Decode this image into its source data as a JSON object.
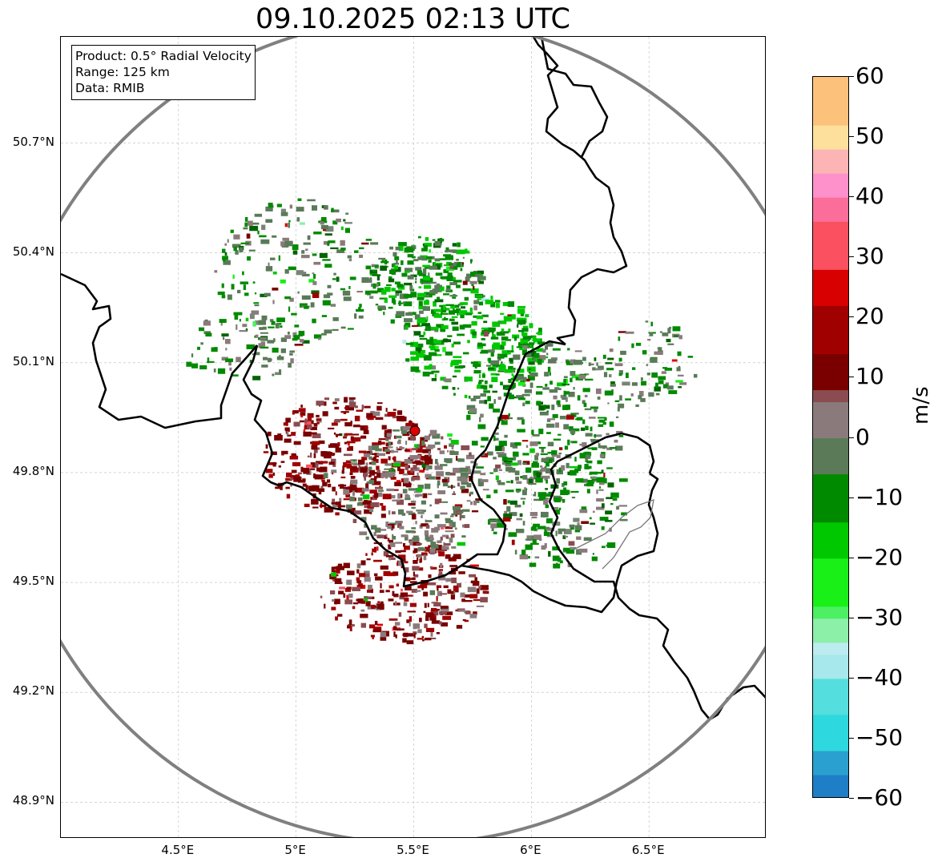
{
  "title": "09.10.2025 02:13 UTC",
  "info": {
    "product": "Product: 0.5° Radial Velocity",
    "range": "Range: 125 km",
    "source": "Data: RMIB"
  },
  "lat_ticks": [
    "50.7°N",
    "50.4°N",
    "50.1°N",
    "49.8°N",
    "49.5°N",
    "49.2°N",
    "48.9°N"
  ],
  "lon_ticks": [
    "4.5°E",
    "5°E",
    "5.5°E",
    "6°E",
    "6.5°E"
  ],
  "lon_values": [
    4.5,
    5.0,
    5.5,
    6.0,
    6.5
  ],
  "lat_values": [
    50.7,
    50.4,
    50.1,
    49.8,
    49.5,
    49.2,
    48.9
  ],
  "extent": {
    "lon_min": 4.0,
    "lon_max": 7.0,
    "lat_min": 48.8,
    "lat_max": 50.99
  },
  "radar_site": {
    "lon": 5.505,
    "lat": 49.914,
    "color": "#e00000"
  },
  "range_ring_km": 125,
  "colorbar": {
    "label": "m/s",
    "min": -60,
    "max": 60,
    "ticks": [
      "60",
      "50",
      "40",
      "30",
      "20",
      "10",
      "0",
      "−10",
      "−20",
      "−30",
      "−40",
      "−50",
      "−60"
    ],
    "tick_values": [
      60,
      50,
      40,
      30,
      20,
      10,
      0,
      -10,
      -20,
      -30,
      -40,
      -50,
      -60
    ]
  },
  "palette": {
    "stops": [
      {
        "v": -60,
        "c": "#1f7fc6"
      },
      {
        "v": -56,
        "c": "#2aa0d0"
      },
      {
        "v": -52,
        "c": "#2dd8de"
      },
      {
        "v": -46,
        "c": "#55dede"
      },
      {
        "v": -40,
        "c": "#a6e8ec"
      },
      {
        "v": -35,
        "c": "#bcecf0"
      },
      {
        "v": -33,
        "c": "#8cf0a8"
      },
      {
        "v": -30,
        "c": "#4cf062"
      },
      {
        "v": -27,
        "c": "#18f018"
      },
      {
        "v": -20,
        "c": "#00c800"
      },
      {
        "v": -13,
        "c": "#008a00"
      },
      {
        "v": -6,
        "c": "#006400"
      },
      {
        "v": -5,
        "c": "#5a7a58"
      },
      {
        "v": 0,
        "c": "#7a8476"
      },
      {
        "v": 1,
        "c": "#8a7a7c"
      },
      {
        "v": 6,
        "c": "#8a4c50"
      },
      {
        "v": 8,
        "c": "#7a0000"
      },
      {
        "v": 15,
        "c": "#a00000"
      },
      {
        "v": 22,
        "c": "#d80000"
      },
      {
        "v": 28,
        "c": "#f80000"
      },
      {
        "v": 29,
        "c": "#fa5060"
      },
      {
        "v": 36,
        "c": "#fc6e9a"
      },
      {
        "v": 40,
        "c": "#fe90cc"
      },
      {
        "v": 45,
        "c": "#fcb4b4"
      },
      {
        "v": 48,
        "c": "#fce09c"
      },
      {
        "v": 53,
        "c": "#fcc27c"
      },
      {
        "v": 60,
        "c": "#fc9454"
      }
    ]
  },
  "echo_regions": [
    {
      "lon": 5.55,
      "lat": 50.32,
      "rx": 0.25,
      "ry": 0.13,
      "v": -8,
      "n": 260
    },
    {
      "lon": 5.75,
      "lat": 50.15,
      "rx": 0.3,
      "ry": 0.14,
      "v": -12,
      "n": 260
    },
    {
      "lon": 6.05,
      "lat": 49.95,
      "rx": 0.33,
      "ry": 0.22,
      "v": -5,
      "n": 320
    },
    {
      "lon": 6.1,
      "lat": 49.72,
      "rx": 0.3,
      "ry": 0.18,
      "v": -3,
      "n": 200
    },
    {
      "lon": 5.2,
      "lat": 49.85,
      "rx": 0.35,
      "ry": 0.16,
      "v": 12,
      "n": 380
    },
    {
      "lon": 5.45,
      "lat": 49.48,
      "rx": 0.35,
      "ry": 0.14,
      "v": 11,
      "n": 300
    },
    {
      "lon": 5.5,
      "lat": 49.75,
      "rx": 0.3,
      "ry": 0.18,
      "v": 3,
      "n": 320
    },
    {
      "lon": 5.0,
      "lat": 50.35,
      "rx": 0.35,
      "ry": 0.2,
      "v": -4,
      "n": 200
    },
    {
      "lon": 4.75,
      "lat": 50.15,
      "rx": 0.25,
      "ry": 0.1,
      "v": -4,
      "n": 80
    },
    {
      "lon": 6.5,
      "lat": 50.1,
      "rx": 0.2,
      "ry": 0.12,
      "v": -4,
      "n": 80
    }
  ]
}
